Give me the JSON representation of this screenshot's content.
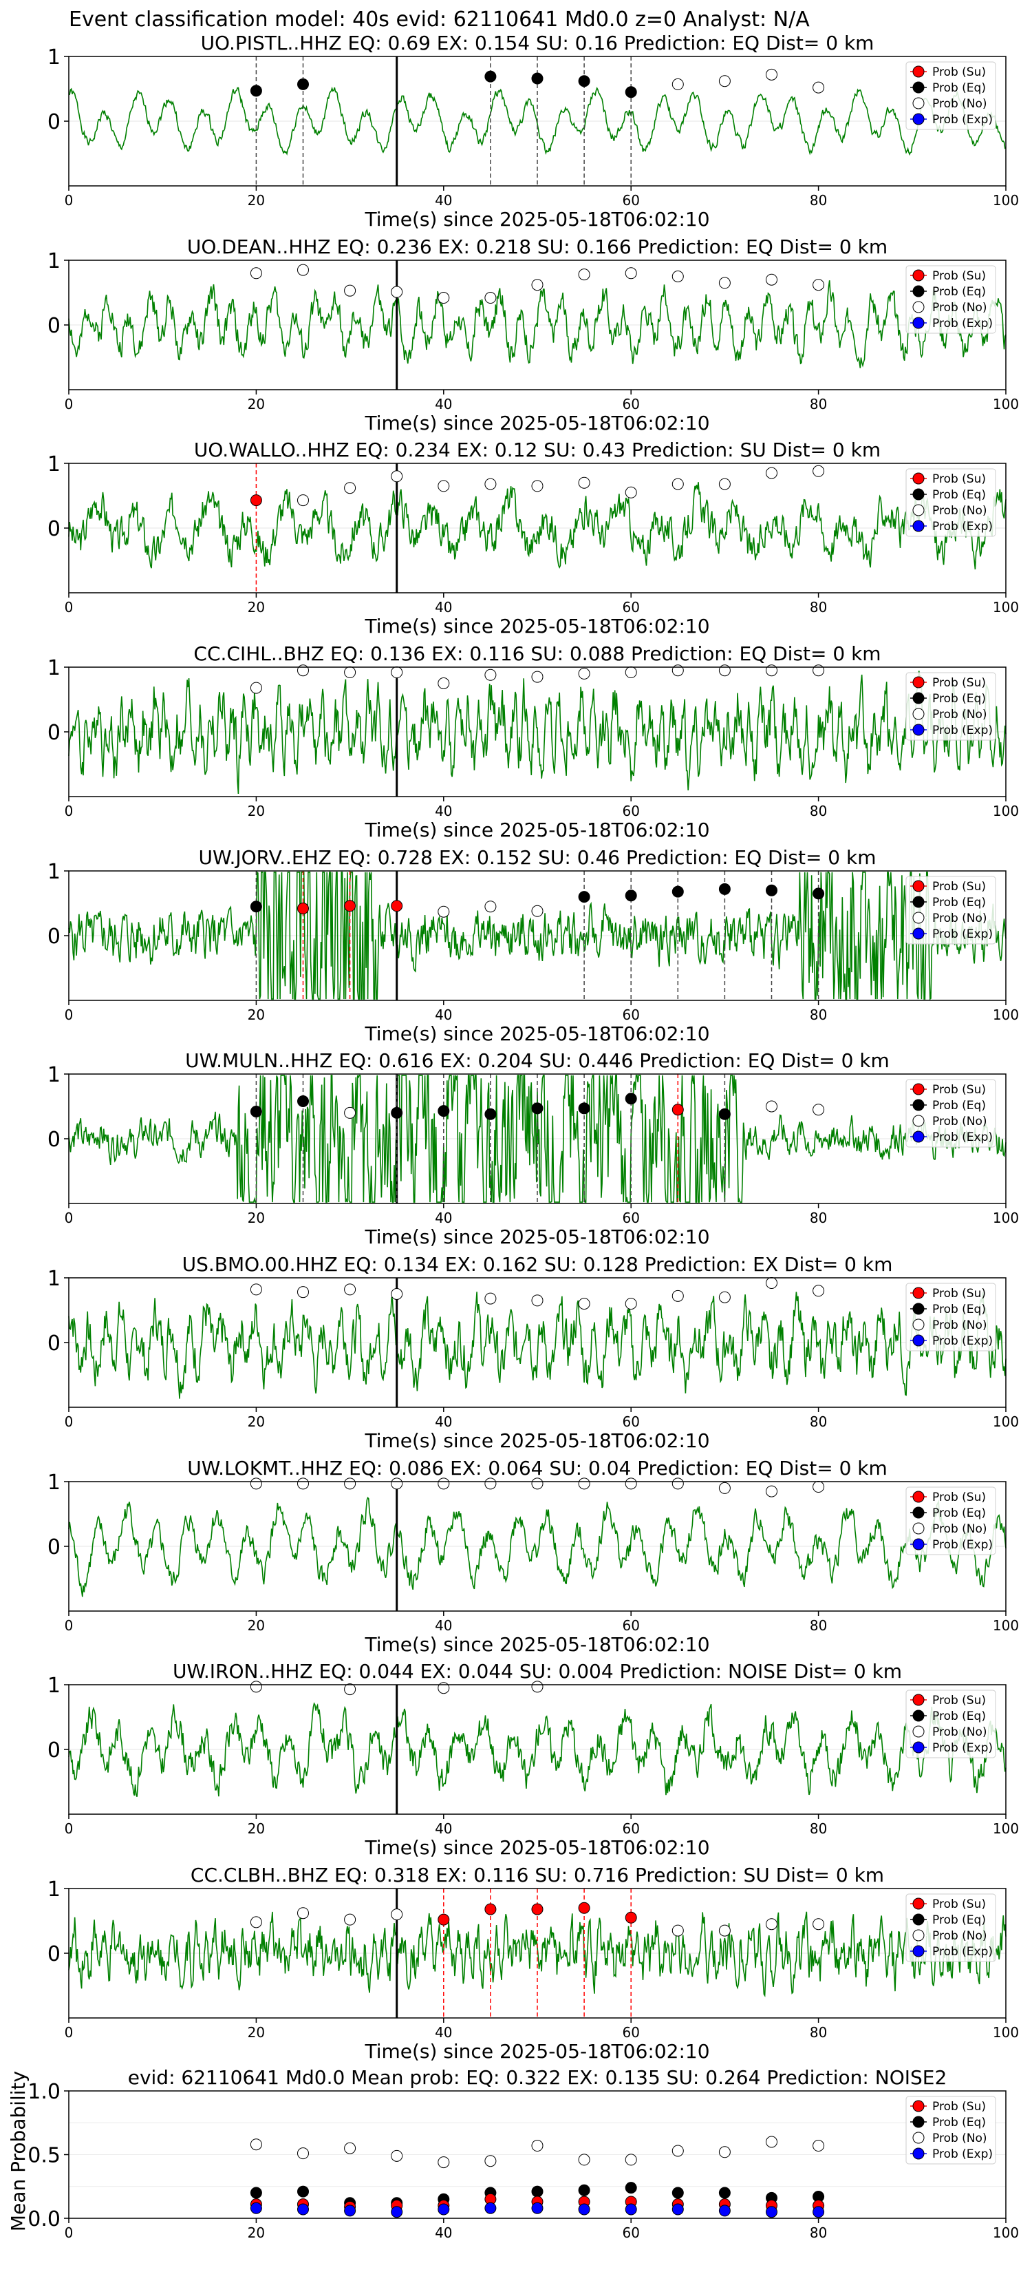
{
  "figure_title": "Event classification model: 40s evid: 62110641 Md0.0 z=0 Analyst: N/A",
  "legend_labels": [
    "Prob (Su)",
    "Prob (Eq)",
    "Prob (No)",
    "Prob (Exp)"
  ],
  "colors": {
    "su": "#ff0000",
    "eq": "#000000",
    "no": "#ffffff",
    "exp": "#0000ff",
    "waveform": "#008000"
  },
  "chart_data": [
    {
      "type": "line",
      "title": "UO.PISTL..HHZ   EQ: 0.69  EX: 0.154  SU: 0.16   Prediction: EQ    Dist= 0 km",
      "xlabel": "Time(s) since 2025-05-18T06:02:10",
      "xlim": [
        0,
        100
      ],
      "ylim": [
        -1,
        1
      ],
      "xticks": [
        0,
        20,
        40,
        60,
        80,
        100
      ],
      "yticks": [
        0,
        1
      ],
      "pick_time": 35,
      "waveform": {
        "seed": 1,
        "period": 3.5,
        "noise": 0.12
      },
      "points": [
        {
          "t": 20,
          "cls": "eq",
          "p": 0.47,
          "line": true
        },
        {
          "t": 25,
          "cls": "eq",
          "p": 0.57,
          "line": true
        },
        {
          "t": 45,
          "cls": "eq",
          "p": 0.69,
          "line": true
        },
        {
          "t": 50,
          "cls": "eq",
          "p": 0.66,
          "line": true
        },
        {
          "t": 55,
          "cls": "eq",
          "p": 0.62,
          "line": true
        },
        {
          "t": 60,
          "cls": "eq",
          "p": 0.45,
          "line": true
        },
        {
          "t": 65,
          "cls": "no",
          "p": 0.57
        },
        {
          "t": 70,
          "cls": "no",
          "p": 0.62
        },
        {
          "t": 75,
          "cls": "no",
          "p": 0.72
        },
        {
          "t": 80,
          "cls": "no",
          "p": 0.52
        }
      ]
    },
    {
      "type": "line",
      "title": "UO.DEAN..HHZ   EQ: 0.236  EX: 0.218  SU: 0.166   Prediction: EQ    Dist= 0 km",
      "xlabel": "Time(s) since 2025-05-18T06:02:10",
      "xlim": [
        0,
        100
      ],
      "ylim": [
        -1,
        1
      ],
      "xticks": [
        0,
        20,
        40,
        60,
        80,
        100
      ],
      "yticks": [
        0,
        1
      ],
      "pick_time": 35,
      "waveform": {
        "seed": 2,
        "period": 2.2,
        "noise": 0.35
      },
      "points": [
        {
          "t": 20,
          "cls": "no",
          "p": 0.8
        },
        {
          "t": 25,
          "cls": "no",
          "p": 0.85
        },
        {
          "t": 30,
          "cls": "no",
          "p": 0.53
        },
        {
          "t": 35,
          "cls": "no",
          "p": 0.51
        },
        {
          "t": 40,
          "cls": "no",
          "p": 0.42
        },
        {
          "t": 45,
          "cls": "no",
          "p": 0.42
        },
        {
          "t": 50,
          "cls": "no",
          "p": 0.62
        },
        {
          "t": 55,
          "cls": "no",
          "p": 0.78
        },
        {
          "t": 60,
          "cls": "no",
          "p": 0.8
        },
        {
          "t": 65,
          "cls": "no",
          "p": 0.75
        },
        {
          "t": 70,
          "cls": "no",
          "p": 0.65
        },
        {
          "t": 75,
          "cls": "no",
          "p": 0.7
        },
        {
          "t": 80,
          "cls": "no",
          "p": 0.62
        }
      ]
    },
    {
      "type": "line",
      "title": "UO.WALLO..HHZ   EQ: 0.234  EX: 0.12  SU: 0.43   Prediction: SU    Dist= 0 km",
      "xlabel": "Time(s) since 2025-05-18T06:02:10",
      "xlim": [
        0,
        100
      ],
      "ylim": [
        -1,
        1
      ],
      "xticks": [
        0,
        20,
        40,
        60,
        80,
        100
      ],
      "yticks": [
        0,
        1
      ],
      "pick_time": 35,
      "waveform": {
        "seed": 3,
        "period": 4.0,
        "noise": 0.45,
        "amp": 0.45
      },
      "points": [
        {
          "t": 20,
          "cls": "su",
          "p": 0.43,
          "line": true
        },
        {
          "t": 25,
          "cls": "no",
          "p": 0.43
        },
        {
          "t": 30,
          "cls": "no",
          "p": 0.62
        },
        {
          "t": 35,
          "cls": "no",
          "p": 0.8
        },
        {
          "t": 40,
          "cls": "no",
          "p": 0.65
        },
        {
          "t": 45,
          "cls": "no",
          "p": 0.68
        },
        {
          "t": 50,
          "cls": "no",
          "p": 0.65
        },
        {
          "t": 55,
          "cls": "no",
          "p": 0.7
        },
        {
          "t": 60,
          "cls": "no",
          "p": 0.55
        },
        {
          "t": 65,
          "cls": "no",
          "p": 0.68
        },
        {
          "t": 70,
          "cls": "no",
          "p": 0.68
        },
        {
          "t": 75,
          "cls": "no",
          "p": 0.85
        },
        {
          "t": 80,
          "cls": "no",
          "p": 0.88
        }
      ]
    },
    {
      "type": "line",
      "title": "CC.CIHL..BHZ   EQ: 0.136  EX: 0.116  SU: 0.088   Prediction: EQ    Dist= 0 km",
      "xlabel": "Time(s) since 2025-05-18T06:02:10",
      "xlim": [
        0,
        100
      ],
      "ylim": [
        -1,
        1
      ],
      "xticks": [
        0,
        20,
        40,
        60,
        80,
        100
      ],
      "yticks": [
        0,
        1
      ],
      "pick_time": 35,
      "waveform": {
        "seed": 4,
        "period": 1.2,
        "noise": 0.7,
        "amp": 0.55
      },
      "points": [
        {
          "t": 20,
          "cls": "no",
          "p": 0.68
        },
        {
          "t": 25,
          "cls": "no",
          "p": 0.95
        },
        {
          "t": 30,
          "cls": "no",
          "p": 0.92
        },
        {
          "t": 35,
          "cls": "no",
          "p": 0.92
        },
        {
          "t": 40,
          "cls": "no",
          "p": 0.75
        },
        {
          "t": 45,
          "cls": "no",
          "p": 0.88
        },
        {
          "t": 50,
          "cls": "no",
          "p": 0.85
        },
        {
          "t": 55,
          "cls": "no",
          "p": 0.9
        },
        {
          "t": 60,
          "cls": "no",
          "p": 0.92
        },
        {
          "t": 65,
          "cls": "no",
          "p": 0.95
        },
        {
          "t": 70,
          "cls": "no",
          "p": 0.95
        },
        {
          "t": 75,
          "cls": "no",
          "p": 0.95
        },
        {
          "t": 80,
          "cls": "no",
          "p": 0.95
        }
      ]
    },
    {
      "type": "line",
      "title": "UW.JORV..EHZ   EQ: 0.728  EX: 0.152  SU: 0.46   Prediction: EQ    Dist= 0 km",
      "xlabel": "Time(s) since 2025-05-18T06:02:10",
      "xlim": [
        0,
        100
      ],
      "ylim": [
        -1,
        1
      ],
      "xticks": [
        0,
        20,
        40,
        60,
        80,
        100
      ],
      "yticks": [
        0,
        1
      ],
      "pick_time": 35,
      "waveform": {
        "seed": 5,
        "period": 0.8,
        "noise": 0.6,
        "amp": 0.15,
        "bursts": [
          [
            20,
            33,
            0.55
          ],
          [
            78,
            92,
            0.35
          ]
        ]
      },
      "points": [
        {
          "t": 20,
          "cls": "eq",
          "p": 0.45,
          "line": true
        },
        {
          "t": 25,
          "cls": "su",
          "p": 0.42,
          "line": true
        },
        {
          "t": 30,
          "cls": "su",
          "p": 0.46,
          "line": true
        },
        {
          "t": 35,
          "cls": "su",
          "p": 0.46
        },
        {
          "t": 40,
          "cls": "no",
          "p": 0.37
        },
        {
          "t": 45,
          "cls": "no",
          "p": 0.45
        },
        {
          "t": 50,
          "cls": "no",
          "p": 0.38
        },
        {
          "t": 55,
          "cls": "eq",
          "p": 0.6,
          "line": true
        },
        {
          "t": 60,
          "cls": "eq",
          "p": 0.62,
          "line": true
        },
        {
          "t": 65,
          "cls": "eq",
          "p": 0.68,
          "line": true
        },
        {
          "t": 70,
          "cls": "eq",
          "p": 0.72,
          "line": true
        },
        {
          "t": 75,
          "cls": "eq",
          "p": 0.7,
          "line": true
        },
        {
          "t": 80,
          "cls": "eq",
          "p": 0.65,
          "line": true
        }
      ]
    },
    {
      "type": "line",
      "title": "UW.MULN..HHZ   EQ: 0.616  EX: 0.204  SU: 0.446   Prediction: EQ    Dist= 0 km",
      "xlabel": "Time(s) since 2025-05-18T06:02:10",
      "xlim": [
        0,
        100
      ],
      "ylim": [
        -1,
        1
      ],
      "xticks": [
        0,
        20,
        40,
        60,
        80,
        100
      ],
      "yticks": [
        0,
        1
      ],
      "pick_time": 35,
      "waveform": {
        "seed": 6,
        "period": 2.5,
        "noise": 0.4,
        "amp": 0.15,
        "bursts": [
          [
            18,
            72,
            0.5
          ]
        ]
      },
      "points": [
        {
          "t": 20,
          "cls": "eq",
          "p": 0.42,
          "line": true
        },
        {
          "t": 25,
          "cls": "eq",
          "p": 0.58,
          "line": true
        },
        {
          "t": 30,
          "cls": "no",
          "p": 0.4
        },
        {
          "t": 35,
          "cls": "eq",
          "p": 0.4,
          "line": true
        },
        {
          "t": 40,
          "cls": "eq",
          "p": 0.43,
          "line": true
        },
        {
          "t": 45,
          "cls": "eq",
          "p": 0.38,
          "line": true
        },
        {
          "t": 50,
          "cls": "eq",
          "p": 0.47,
          "line": true
        },
        {
          "t": 55,
          "cls": "eq",
          "p": 0.47,
          "line": true
        },
        {
          "t": 60,
          "cls": "eq",
          "p": 0.62,
          "line": true
        },
        {
          "t": 65,
          "cls": "su",
          "p": 0.45,
          "line": true
        },
        {
          "t": 70,
          "cls": "eq",
          "p": 0.38,
          "line": true
        },
        {
          "t": 75,
          "cls": "no",
          "p": 0.5
        },
        {
          "t": 80,
          "cls": "no",
          "p": 0.45
        }
      ]
    },
    {
      "type": "line",
      "title": "US.BMO.00.HHZ   EQ: 0.134  EX: 0.162  SU: 0.128   Prediction: EX    Dist= 0 km",
      "xlabel": "Time(s) since 2025-05-18T06:02:10",
      "xlim": [
        0,
        100
      ],
      "ylim": [
        -1,
        1
      ],
      "xticks": [
        0,
        20,
        40,
        60,
        80,
        100
      ],
      "yticks": [
        0,
        1
      ],
      "pick_time": 35,
      "waveform": {
        "seed": 7,
        "period": 1.8,
        "noise": 0.6,
        "amp": 0.5
      },
      "points": [
        {
          "t": 20,
          "cls": "no",
          "p": 0.82
        },
        {
          "t": 25,
          "cls": "no",
          "p": 0.78
        },
        {
          "t": 30,
          "cls": "no",
          "p": 0.82
        },
        {
          "t": 35,
          "cls": "no",
          "p": 0.75
        },
        {
          "t": 45,
          "cls": "no",
          "p": 0.68
        },
        {
          "t": 50,
          "cls": "no",
          "p": 0.65
        },
        {
          "t": 55,
          "cls": "no",
          "p": 0.6
        },
        {
          "t": 60,
          "cls": "no",
          "p": 0.6
        },
        {
          "t": 65,
          "cls": "no",
          "p": 0.72
        },
        {
          "t": 70,
          "cls": "no",
          "p": 0.7
        },
        {
          "t": 75,
          "cls": "no",
          "p": 0.92
        },
        {
          "t": 80,
          "cls": "no",
          "p": 0.8
        }
      ]
    },
    {
      "type": "line",
      "title": "UW.LOKMT..HHZ   EQ: 0.086  EX: 0.064  SU: 0.04   Prediction: EQ    Dist= 0 km",
      "xlabel": "Time(s) since 2025-05-18T06:02:10",
      "xlim": [
        0,
        100
      ],
      "ylim": [
        -1,
        1
      ],
      "xticks": [
        0,
        20,
        40,
        60,
        80,
        100
      ],
      "yticks": [
        0,
        1
      ],
      "pick_time": 35,
      "waveform": {
        "seed": 8,
        "period": 3.2,
        "noise": 0.3,
        "amp": 0.6
      },
      "points": [
        {
          "t": 20,
          "cls": "no",
          "p": 0.97
        },
        {
          "t": 25,
          "cls": "no",
          "p": 0.97
        },
        {
          "t": 30,
          "cls": "no",
          "p": 0.97
        },
        {
          "t": 35,
          "cls": "no",
          "p": 0.97
        },
        {
          "t": 40,
          "cls": "no",
          "p": 0.97
        },
        {
          "t": 45,
          "cls": "no",
          "p": 0.97
        },
        {
          "t": 50,
          "cls": "no",
          "p": 0.97
        },
        {
          "t": 55,
          "cls": "no",
          "p": 0.97
        },
        {
          "t": 60,
          "cls": "no",
          "p": 0.97
        },
        {
          "t": 65,
          "cls": "no",
          "p": 0.97
        },
        {
          "t": 70,
          "cls": "no",
          "p": 0.9
        },
        {
          "t": 75,
          "cls": "no",
          "p": 0.85
        },
        {
          "t": 80,
          "cls": "no",
          "p": 0.92
        }
      ]
    },
    {
      "type": "line",
      "title": "UW.IRON..HHZ   EQ: 0.044  EX: 0.044  SU: 0.004   Prediction: NOISE    Dist= 0 km",
      "xlabel": "Time(s) since 2025-05-18T06:02:10",
      "xlim": [
        0,
        100
      ],
      "ylim": [
        -1,
        1
      ],
      "xticks": [
        0,
        20,
        40,
        60,
        80,
        100
      ],
      "yticks": [
        0,
        1
      ],
      "pick_time": 35,
      "waveform": {
        "seed": 9,
        "period": 3.0,
        "noise": 0.4,
        "amp": 0.55
      },
      "points": [
        {
          "t": 20,
          "cls": "no",
          "p": 0.97
        },
        {
          "t": 30,
          "cls": "no",
          "p": 0.93
        },
        {
          "t": 40,
          "cls": "no",
          "p": 0.95
        },
        {
          "t": 50,
          "cls": "no",
          "p": 0.97
        }
      ]
    },
    {
      "type": "line",
      "title": "CC.CLBH..BHZ   EQ: 0.318  EX: 0.116  SU: 0.716   Prediction: SU    Dist= 0 km",
      "xlabel": "Time(s) since 2025-05-18T06:02:10",
      "xlim": [
        0,
        100
      ],
      "ylim": [
        -1,
        1
      ],
      "xticks": [
        0,
        20,
        40,
        60,
        80,
        100
      ],
      "yticks": [
        0,
        1
      ],
      "pick_time": 35,
      "waveform": {
        "seed": 10,
        "period": 1.0,
        "noise": 0.6,
        "amp": 0.3
      },
      "points": [
        {
          "t": 20,
          "cls": "no",
          "p": 0.48
        },
        {
          "t": 25,
          "cls": "no",
          "p": 0.62
        },
        {
          "t": 30,
          "cls": "no",
          "p": 0.52
        },
        {
          "t": 35,
          "cls": "no",
          "p": 0.6
        },
        {
          "t": 40,
          "cls": "su",
          "p": 0.52,
          "line": true
        },
        {
          "t": 45,
          "cls": "su",
          "p": 0.68,
          "line": true
        },
        {
          "t": 50,
          "cls": "su",
          "p": 0.68,
          "line": true
        },
        {
          "t": 55,
          "cls": "su",
          "p": 0.7,
          "line": true
        },
        {
          "t": 60,
          "cls": "su",
          "p": 0.55,
          "line": true
        },
        {
          "t": 65,
          "cls": "no",
          "p": 0.35
        },
        {
          "t": 70,
          "cls": "no",
          "p": 0.35
        },
        {
          "t": 75,
          "cls": "no",
          "p": 0.45
        },
        {
          "t": 80,
          "cls": "no",
          "p": 0.45
        }
      ]
    },
    {
      "type": "scatter",
      "title": "evid: 62110641  Md0.0   Mean prob:   EQ: 0.322  EX: 0.135  SU: 0.264   Prediction: NOISE2",
      "ylabel": "Mean Probability",
      "xlim": [
        0,
        100
      ],
      "ylim": [
        0,
        1
      ],
      "xticks": [
        0,
        20,
        40,
        60,
        80,
        100
      ],
      "yticks": [
        0.0,
        0.5,
        1.0
      ],
      "ytick_labels": [
        "0.0",
        "0.5",
        "1.0"
      ],
      "x": [
        20,
        25,
        30,
        35,
        40,
        45,
        50,
        55,
        60,
        65,
        70,
        75,
        80
      ],
      "series": [
        {
          "cls": "no",
          "values": [
            0.58,
            0.51,
            0.55,
            0.49,
            0.44,
            0.45,
            0.57,
            0.46,
            0.46,
            0.53,
            0.52,
            0.6,
            0.57
          ]
        },
        {
          "cls": "eq",
          "values": [
            0.2,
            0.21,
            0.12,
            0.12,
            0.15,
            0.2,
            0.21,
            0.22,
            0.24,
            0.2,
            0.2,
            0.16,
            0.17
          ]
        },
        {
          "cls": "su",
          "values": [
            0.11,
            0.11,
            0.09,
            0.1,
            0.1,
            0.15,
            0.13,
            0.13,
            0.13,
            0.11,
            0.11,
            0.1,
            0.1
          ]
        },
        {
          "cls": "exp",
          "values": [
            0.08,
            0.07,
            0.06,
            0.05,
            0.07,
            0.08,
            0.08,
            0.07,
            0.07,
            0.07,
            0.06,
            0.05,
            0.05
          ]
        }
      ]
    }
  ]
}
